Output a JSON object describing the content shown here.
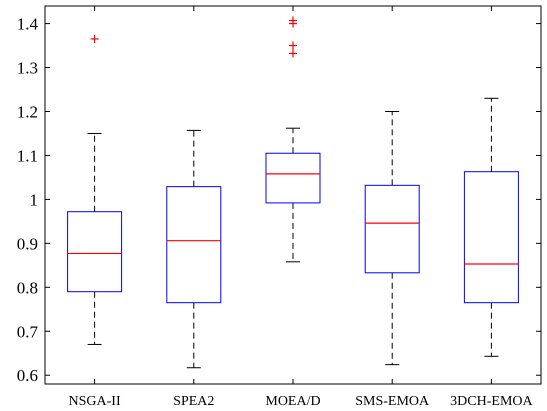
{
  "chart_data": {
    "type": "box",
    "title": "",
    "xlabel": "",
    "ylabel": "",
    "ylim": [
      0.58,
      1.44
    ],
    "yticks": [
      0.6,
      0.7,
      0.8,
      0.9,
      1.0,
      1.1,
      1.2,
      1.3,
      1.4
    ],
    "ytick_labels": [
      "0.6",
      "0.7",
      "0.8",
      "0.9",
      "1",
      "1.1",
      "1.2",
      "1.3",
      "1.4"
    ],
    "grid": false,
    "categories": [
      "NSGA-II",
      "SPEA2",
      "MOEA/D",
      "SMS-EMOA",
      "3DCH-EMOA"
    ],
    "boxes": [
      {
        "whisker_low": 0.67,
        "q1": 0.79,
        "median": 0.877,
        "q3": 0.972,
        "whisker_high": 1.15,
        "outliers": [
          1.365
        ]
      },
      {
        "whisker_low": 0.617,
        "q1": 0.765,
        "median": 0.906,
        "q3": 1.029,
        "whisker_high": 1.157,
        "outliers": []
      },
      {
        "whisker_low": 0.858,
        "q1": 0.992,
        "median": 1.058,
        "q3": 1.105,
        "whisker_high": 1.162,
        "outliers": [
          1.332,
          1.35,
          1.4,
          1.407
        ]
      },
      {
        "whisker_low": 0.624,
        "q1": 0.833,
        "median": 0.946,
        "q3": 1.032,
        "whisker_high": 1.2,
        "outliers": []
      },
      {
        "whisker_low": 0.643,
        "q1": 0.765,
        "median": 0.853,
        "q3": 1.063,
        "whisker_high": 1.23,
        "outliers": []
      }
    ],
    "colors": {
      "box": "#0000ff",
      "median": "#ff0000",
      "whisker": "#000000",
      "outlier": "#ff0000",
      "axes": "#000000"
    }
  }
}
